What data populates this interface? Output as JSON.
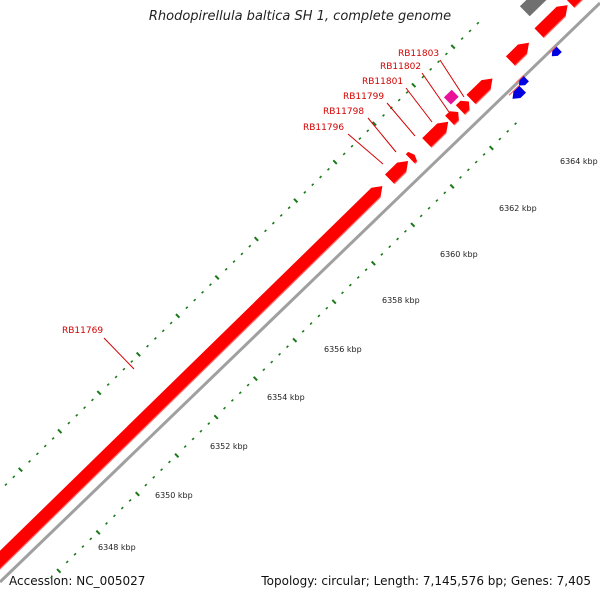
{
  "title": "Rhodopirellula baltica SH 1, complete genome",
  "accession_text": "Accession: NC_005027",
  "summary_text": "Topology: circular; Length: 7,145,576 bp; Genes: 7,405",
  "colors": {
    "forward_gene": "#ff0000",
    "reverse_gene": "#0000e0",
    "rna_gene": "#e8119a",
    "other_feature": "#707070",
    "backbone": "#a0a0a0",
    "tick": "#1a7a1a",
    "label": "#d40000"
  },
  "scale_labels": [
    "6348 kbp",
    "6350 kbp",
    "6352 kbp",
    "6354 kbp",
    "6356 kbp",
    "6358 kbp",
    "6360 kbp",
    "6362 kbp",
    "6364 kbp"
  ],
  "gene_labels": [
    "RB11769",
    "RB11796",
    "RB11798",
    "RB11799",
    "RB11801",
    "RB11802",
    "RB11803"
  ]
}
